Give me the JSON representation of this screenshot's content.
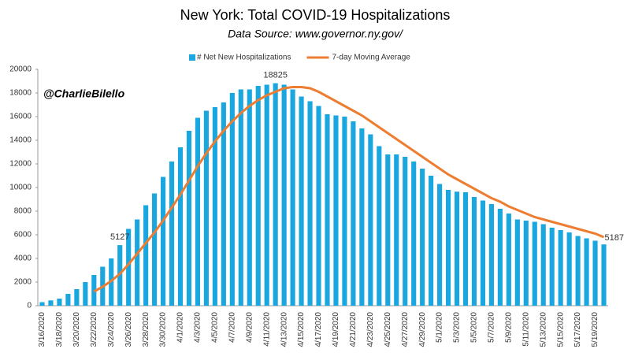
{
  "chart_data": {
    "type": "bar_line",
    "title": "New York: Total COVID-19 Hospitalizations",
    "subtitle": "Data Source: www.governor.ny.gov/",
    "watermark": "@CharlieBilello",
    "categories": [
      "3/16/2020",
      null,
      "3/18/2020",
      null,
      "3/20/2020",
      null,
      "3/22/2020",
      null,
      "3/24/2020",
      null,
      "3/26/2020",
      null,
      "3/28/2020",
      null,
      "3/30/2020",
      null,
      "4/1/2020",
      null,
      "4/3/2020",
      null,
      "4/5/2020",
      null,
      "4/7/2020",
      null,
      "4/9/2020",
      null,
      "4/11/2020",
      null,
      "4/13/2020",
      null,
      "4/15/2020",
      null,
      "4/17/2020",
      null,
      "4/19/2020",
      null,
      "4/21/2020",
      null,
      "4/23/2020",
      null,
      "4/25/2020",
      null,
      "4/27/2020",
      null,
      "4/29/2020",
      null,
      "5/1/2020",
      null,
      "5/3/2020",
      null,
      "5/5/2020",
      null,
      "5/7/2020",
      null,
      "5/9/2020",
      null,
      "5/11/2020",
      null,
      "5/13/2020",
      null,
      "5/15/2020",
      null,
      "5/17/2020",
      null,
      "5/19/2020",
      null
    ],
    "series": [
      {
        "name": "# Net New Hospitalizations",
        "kind": "bar",
        "color": "#1aa7e0",
        "values": [
          300,
          450,
          600,
          1000,
          1400,
          2000,
          2600,
          3300,
          4000,
          5127,
          6500,
          7300,
          8500,
          9500,
          10900,
          12200,
          13400,
          14800,
          15900,
          16500,
          16800,
          17200,
          18000,
          18300,
          18300,
          18600,
          18700,
          18825,
          18700,
          18300,
          17700,
          17300,
          16900,
          16200,
          16100,
          16000,
          15600,
          15000,
          14500,
          13500,
          12800,
          12800,
          12600,
          12200,
          11600,
          11000,
          10300,
          9800,
          9650,
          9600,
          9200,
          8900,
          8600,
          8200,
          7800,
          7300,
          7200,
          7100,
          6900,
          6600,
          6400,
          6200,
          5900,
          5700,
          5500,
          5187
        ],
        "labeled": [
          9,
          27,
          65
        ]
      },
      {
        "name": "7-day Moving Average",
        "kind": "line",
        "color": "#ed7d31",
        "values": [
          null,
          null,
          null,
          null,
          null,
          null,
          1200,
          1600,
          2100,
          2700,
          3500,
          4400,
          5300,
          6200,
          7200,
          8300,
          9400,
          10600,
          11800,
          12900,
          13900,
          14800,
          15600,
          16300,
          16900,
          17400,
          17800,
          18100,
          18400,
          18500,
          18500,
          18400,
          18100,
          17700,
          17300,
          16900,
          16500,
          16100,
          15600,
          15100,
          14600,
          14100,
          13600,
          13100,
          12600,
          12100,
          11600,
          11100,
          10700,
          10300,
          9900,
          9500,
          9100,
          8800,
          8400,
          8100,
          7800,
          7500,
          7300,
          7100,
          6900,
          6700,
          6500,
          6300,
          6100,
          5800
        ]
      }
    ],
    "ylim": [
      0,
      20000
    ],
    "yticks": [
      0,
      2000,
      4000,
      6000,
      8000,
      10000,
      12000,
      14000,
      16000,
      18000,
      20000
    ],
    "legend": "top"
  }
}
